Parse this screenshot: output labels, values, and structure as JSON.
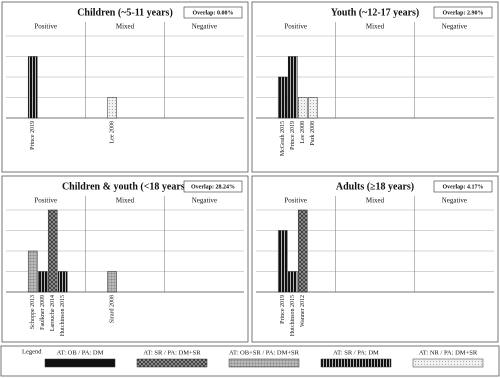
{
  "chart_data": [
    {
      "type": "bar",
      "title": "Children (~5-11 years)",
      "overlap": "Overlap: 0.00%",
      "categories": [
        "Positive",
        "Mixed",
        "Negative"
      ],
      "ylim": [
        0,
        4
      ],
      "yticks": [
        0,
        1,
        2,
        3,
        4
      ],
      "grid": true,
      "bars": [
        {
          "name": "Prince 2019",
          "category": "Positive",
          "value": 3,
          "style": "AT: SR / PA: DM"
        },
        {
          "name": "Lee 2008",
          "category": "Mixed",
          "value": 1,
          "style": "AT: NR / PA: DM+SR"
        }
      ]
    },
    {
      "type": "bar",
      "title": "Youth (~12-17 years)",
      "overlap": "Overlap: 2.90%",
      "categories": [
        "Positive",
        "Mixed",
        "Negative"
      ],
      "ylim": [
        0,
        4
      ],
      "yticks": [
        0,
        1,
        2,
        3,
        4
      ],
      "grid": true,
      "bars": [
        {
          "name": "McGrath 2015",
          "category": "Positive",
          "value": 2,
          "style": "AT: SR / PA: DM"
        },
        {
          "name": "Prince 2019",
          "category": "Positive",
          "value": 3,
          "style": "AT: SR / PA: DM"
        },
        {
          "name": "Lee 2008",
          "category": "Positive",
          "value": 1,
          "style": "AT: NR / PA: DM+SR"
        },
        {
          "name": "Park 2008",
          "category": "Positive",
          "value": 1,
          "style": "AT: NR / PA: DM+SR"
        }
      ]
    },
    {
      "type": "bar",
      "title": "Children & youth (<18 years)",
      "overlap": "Overlap: 28.24%",
      "categories": [
        "Positive",
        "Mixed",
        "Negative"
      ],
      "ylim": [
        0,
        4
      ],
      "yticks": [
        0,
        1,
        2,
        3,
        4
      ],
      "grid": true,
      "bars": [
        {
          "name": "Schoppe 2013",
          "category": "Positive",
          "value": 2,
          "style": "AT: OB+SR / PA: DM+SR"
        },
        {
          "name": "Faulkner 2009",
          "category": "Positive",
          "value": 1,
          "style": "AT: SR / PA: DM"
        },
        {
          "name": "Larouche 2014",
          "category": "Positive",
          "value": 4,
          "style": "AT: SR / PA: DM+SR"
        },
        {
          "name": "Hutchinson 2015",
          "category": "Positive",
          "value": 1,
          "style": "AT: SR / PA: DM"
        },
        {
          "name": "Sirard 2008",
          "category": "Mixed",
          "value": 1,
          "style": "AT: OB+SR / PA: DM+SR"
        }
      ]
    },
    {
      "type": "bar",
      "title": "Adults (≥18 years)",
      "overlap": "Overlap: 4.17%",
      "categories": [
        "Positive",
        "Mixed",
        "Negative"
      ],
      "ylim": [
        0,
        4
      ],
      "yticks": [
        0,
        1,
        2,
        3,
        4
      ],
      "grid": true,
      "bars": [
        {
          "name": "Prince 2019",
          "category": "Positive",
          "value": 3,
          "style": "AT: SR / PA: DM"
        },
        {
          "name": "Hutchinson 2015",
          "category": "Positive",
          "value": 1,
          "style": "AT: SR / PA: DM"
        },
        {
          "name": "Wanner 2012",
          "category": "Positive",
          "value": 4,
          "style": "AT: SR / PA: DM+SR"
        }
      ]
    }
  ],
  "legend": {
    "title": "Legend",
    "entries": [
      "AT: OB / PA: DM",
      "AT: SR / PA: DM+SR",
      "AT: OB+SR / PA: DM+SR",
      "AT: SR / PA: DM",
      "AT: NR / PA: DM+SR"
    ]
  }
}
